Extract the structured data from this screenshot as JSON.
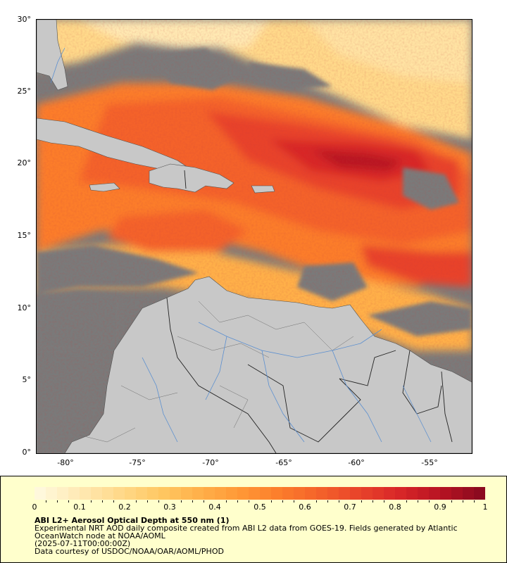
{
  "map": {
    "y_ticks": [
      "30°",
      "25°",
      "20°",
      "15°",
      "10°",
      "5°",
      "0°"
    ],
    "x_ticks": [
      "-80°",
      "-75°",
      "-70°",
      "-65°",
      "-60°",
      "-55°"
    ],
    "colors": {
      "missing": "#7a7a7a",
      "land": "#c8c8c8",
      "rivers": "#5b8fd0",
      "borders": "#505050"
    }
  },
  "legend": {
    "ticks": [
      "0",
      "0.1",
      "0.2",
      "0.3",
      "0.4",
      "0.5",
      "0.6",
      "0.7",
      "0.8",
      "0.9",
      "1"
    ],
    "colorbar_colors": [
      "#fff8dc",
      "#ffe9b3",
      "#ffd98a",
      "#ffc863",
      "#ffb04a",
      "#ff9836",
      "#fc7d2b",
      "#f4622a",
      "#e8432a",
      "#d82628",
      "#b81423",
      "#8c0a1f"
    ],
    "title": "ABI L2+ Aerosol Optical Depth at 550 nm (1)",
    "line1": "Experimental NRT AOD daily composite created from ABI L2 data from GOES-19. Fields generated by Atlantic",
    "line2": "OceanWatch node at NOAA/AOML",
    "line3": "(2025-07-11T00:00:00Z)",
    "line4": "Data courtesy of USDOC/NOAA/OAR/AOML/PHOD"
  }
}
